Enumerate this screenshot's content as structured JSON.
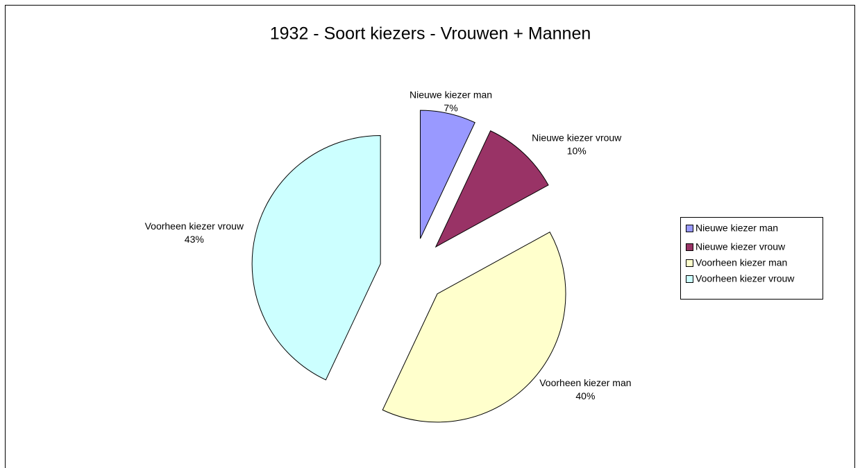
{
  "chart_data": {
    "type": "pie",
    "title": "1932 - Soort kiezers - Vrouwen + Mannen",
    "categories": [
      "Nieuwe kiezer man",
      "Nieuwe kiezer vrouw",
      "Voorheen kiezer man",
      "Voorheen kiezer vrouw"
    ],
    "values": [
      7,
      10,
      40,
      43
    ],
    "value_labels": [
      "7%",
      "10%",
      "40%",
      "43%"
    ],
    "colors": [
      "#9999ff",
      "#993366",
      "#ffffcc",
      "#ccffff"
    ],
    "legend": "right"
  }
}
